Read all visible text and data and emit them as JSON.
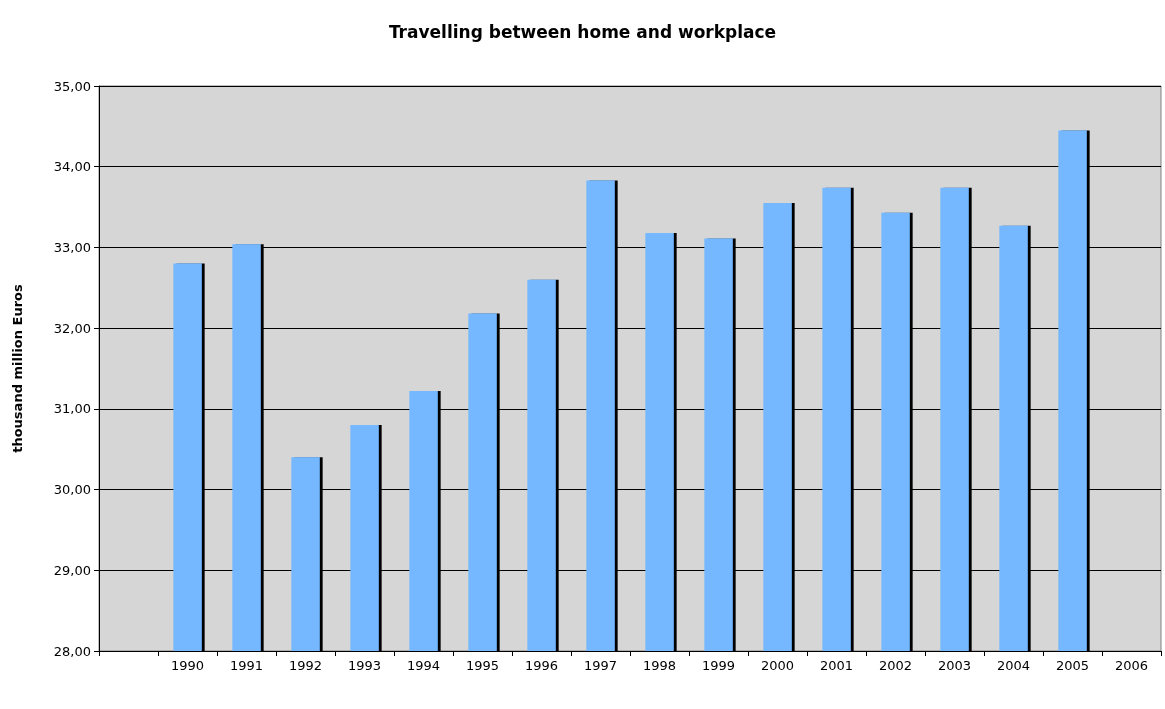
{
  "chart_data": {
    "type": "bar",
    "title": "Travelling between home and workplace",
    "ylabel": "thousand million Euros",
    "categories": [
      null,
      "1990",
      "1991",
      "1992",
      "1993",
      "1994",
      "1995",
      "1996",
      "1997",
      "1998",
      "1999",
      "2000",
      "2001",
      "2002",
      "2003",
      "2004",
      "2005",
      "2006"
    ],
    "values": [
      null,
      32.8,
      33.04,
      30.4,
      30.8,
      31.22,
      32.18,
      32.6,
      33.83,
      33.18,
      33.11,
      33.55,
      33.74,
      33.43,
      33.74,
      33.27,
      34.45,
      null
    ],
    "color": "#75b8ff",
    "ylim": [
      28,
      35
    ],
    "yticks": [
      {
        "value": 28,
        "label": "28,00"
      },
      {
        "value": 29,
        "label": "29,00"
      },
      {
        "value": 30,
        "label": "30,00"
      },
      {
        "value": 31,
        "label": "31,00"
      },
      {
        "value": 32,
        "label": "32,00"
      },
      {
        "value": 33,
        "label": "33,00"
      },
      {
        "value": 34,
        "label": "34,00"
      },
      {
        "value": 35,
        "label": "35,00"
      }
    ],
    "grid": "y"
  }
}
